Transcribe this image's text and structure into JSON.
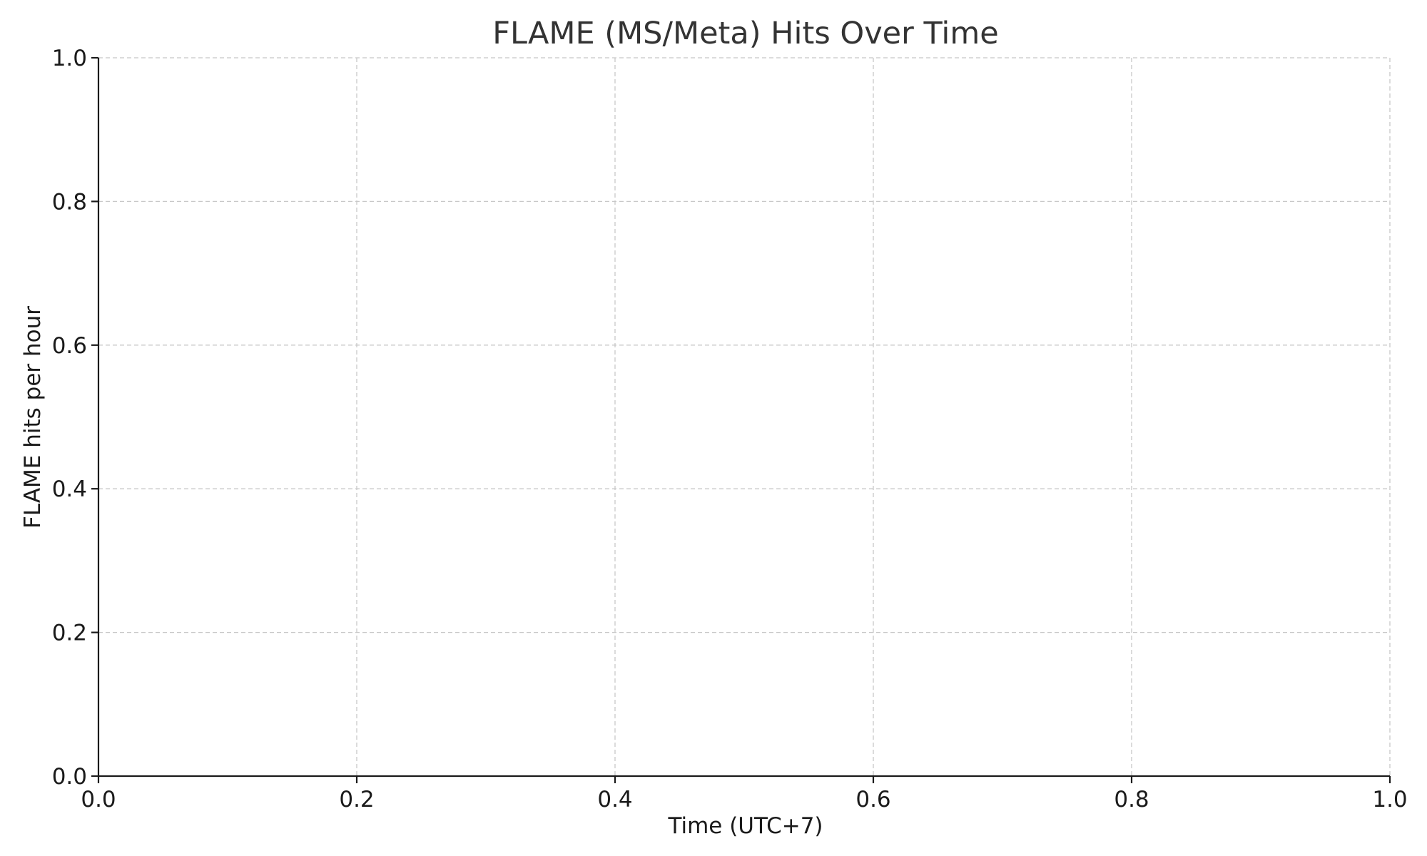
{
  "chart_data": {
    "type": "line",
    "title": "FLAME (MS/Meta) Hits Over Time",
    "xlabel": "Time (UTC+7)",
    "ylabel": "FLAME hits per hour",
    "xlim": [
      0.0,
      1.0
    ],
    "ylim": [
      0.0,
      1.0
    ],
    "xticks": [
      "0.0",
      "0.2",
      "0.4",
      "0.6",
      "0.8",
      "1.0"
    ],
    "yticks": [
      "0.0",
      "0.2",
      "0.4",
      "0.6",
      "0.8",
      "1.0"
    ],
    "grid": true,
    "grid_style": "dashed",
    "series": [],
    "colors": {
      "grid": "#c8c8c8",
      "spine": "#1a1a1a",
      "title": "#333333"
    }
  }
}
